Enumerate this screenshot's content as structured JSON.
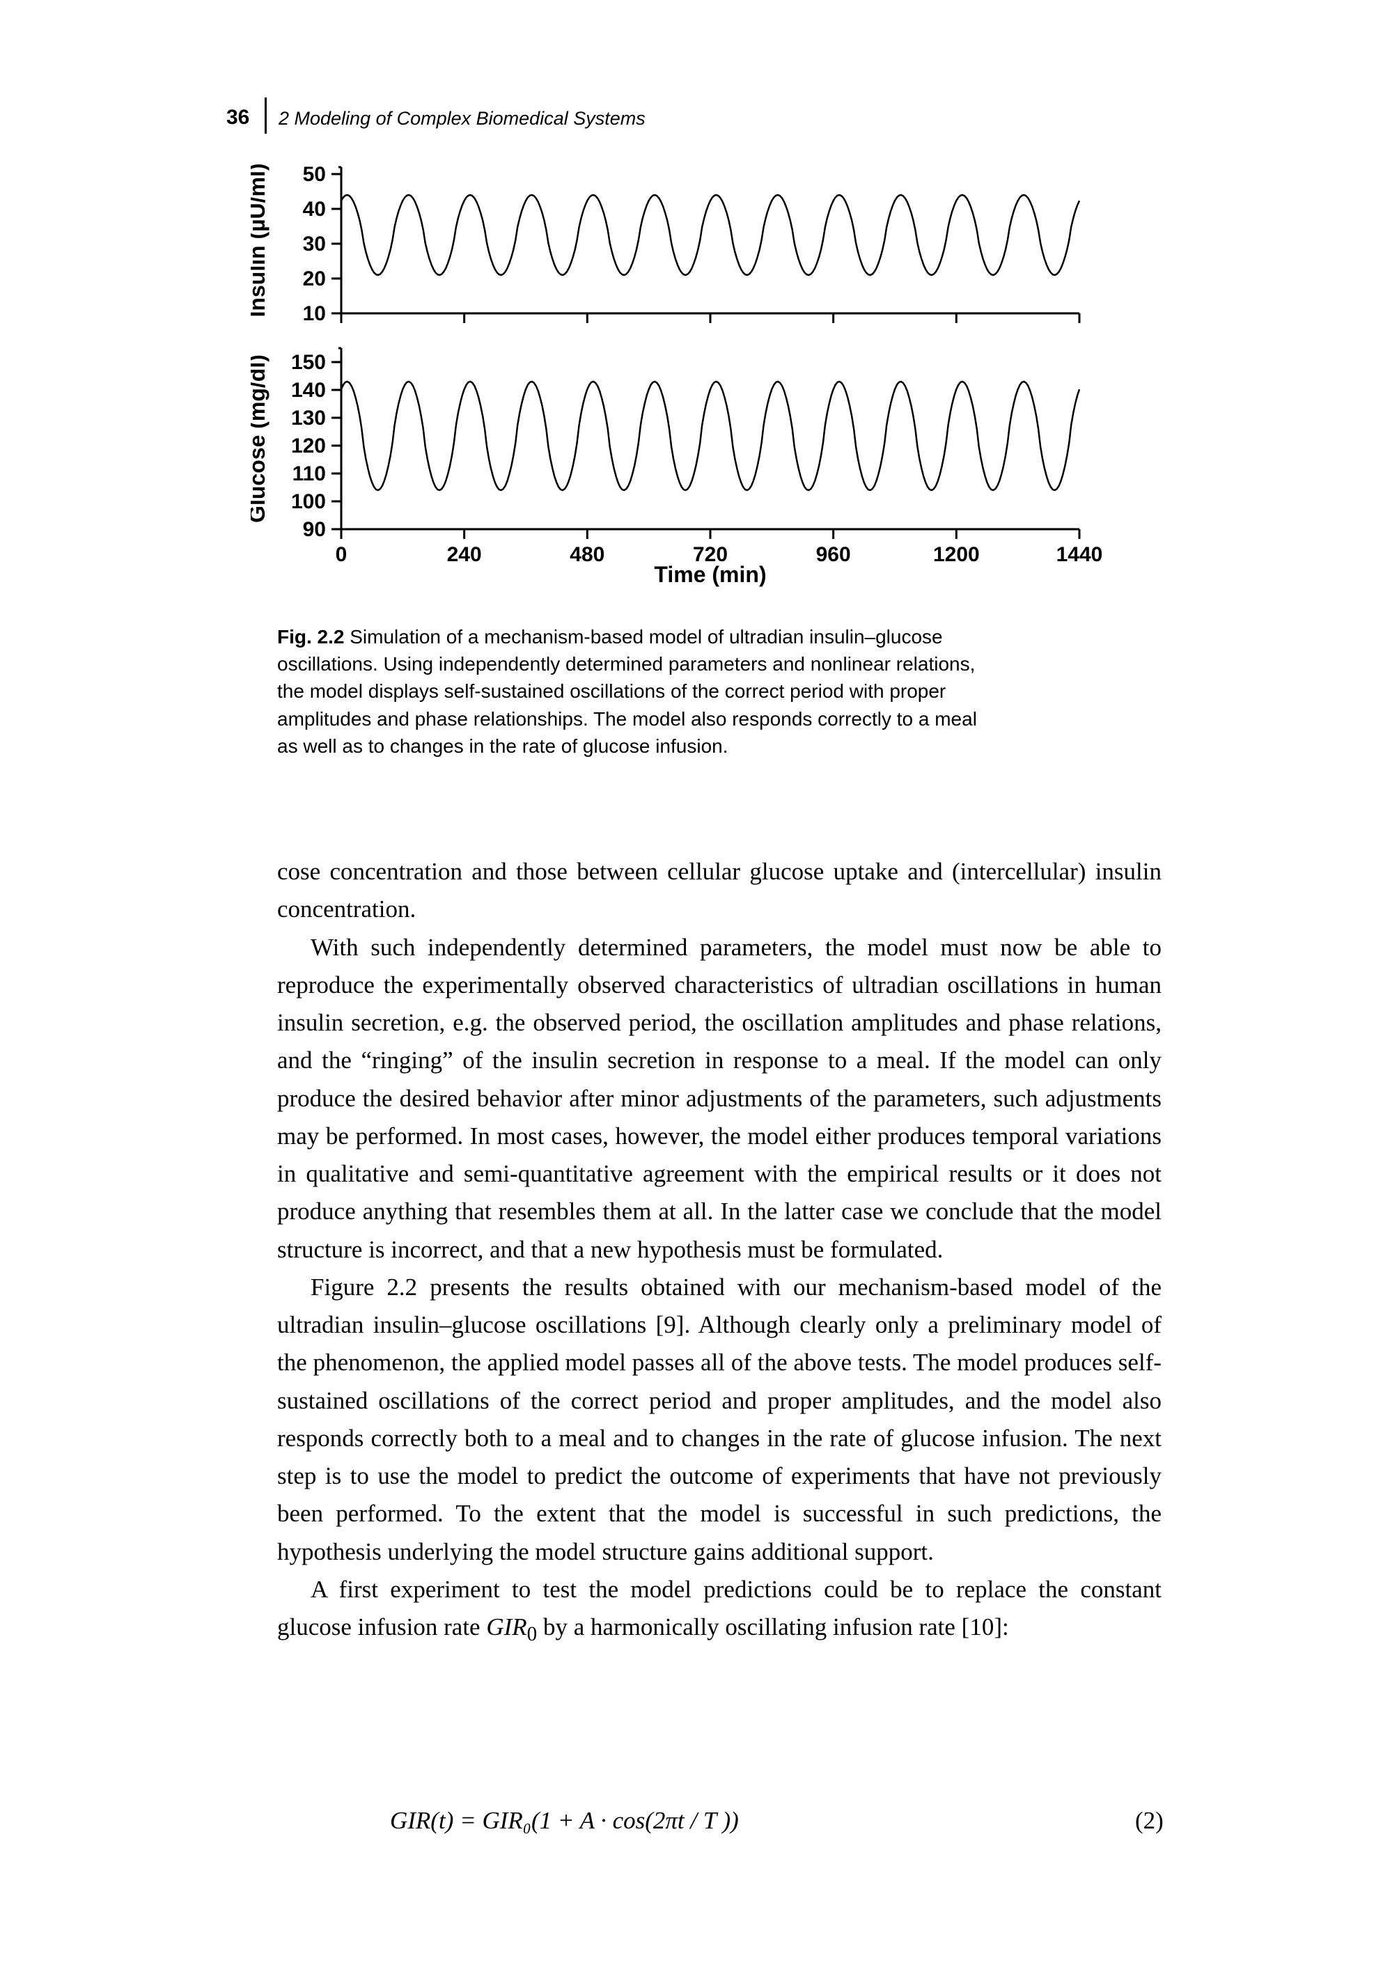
{
  "header": {
    "page_number": "36",
    "running_head": "2 Modeling of Complex Biomedical Systems",
    "page_number_fontsize": 30,
    "running_head_fontsize": 27
  },
  "figure": {
    "type": "two_stacked_line_charts",
    "line_color": "#000000",
    "line_width": 2.5,
    "axis_color": "#000000",
    "axis_width": 3,
    "tick_length": 14,
    "label_fontsize": 32,
    "tick_fontsize": 30,
    "x_axis_label": "Time (min)",
    "x_ticks": [
      0,
      240,
      480,
      720,
      960,
      1200,
      1440
    ],
    "panel_top": {
      "y_label": "Insulin (µU/ml)",
      "y_ticks": [
        10,
        20,
        30,
        40,
        50
      ],
      "ylim": [
        10,
        52
      ],
      "oscillation": {
        "period_min": 120,
        "low": 21,
        "high": 44,
        "series_points": 360
      }
    },
    "panel_bottom": {
      "y_label": "Glucose (mg/dl)",
      "y_ticks": [
        90,
        100,
        110,
        120,
        130,
        140,
        150
      ],
      "ylim": [
        90,
        155
      ],
      "oscillation": {
        "period_min": 120,
        "low": 104,
        "high": 143,
        "series_points": 360
      }
    }
  },
  "caption": {
    "label": "Fig. 2.2",
    "text": "Simulation of a mechanism-based model of ultradian insulin–glucose oscillations. Using independently determined parameters and nonlinear relations, the model displays self-sustained oscillations of the correct period with proper amplitudes and phase relationships. The model also responds correctly to a meal as well as to changes in the rate of glucose infusion.",
    "fontsize": 28
  },
  "body": {
    "p1": "cose concentration and those between cellular glucose uptake and (intercellular) insulin concentration.",
    "p2": "With such independently determined parameters, the model must now be able to reproduce the experimentally observed characteristics of ultradian oscillations in human insulin secretion, e.g. the observed period, the oscillation amplitudes and phase relations, and the “ringing” of the insulin secretion in response to a meal. If the model can only produce the desired behavior after minor adjustments of the parameters, such adjustments may be performed. In most cases, however, the model either produces temporal variations in qualitative and semi-quantitative agreement with the empirical results or it does not produce anything that resembles them at all. In the latter case we conclude that the model structure is incorrect, and that a new hypothesis must be formulated.",
    "p3": "Figure 2.2 presents the results obtained with our mechanism-based model of the ultradian insulin–glucose oscillations [9]. Although clearly only a preliminary model of the phenomenon, the applied model passes all of the above tests. The model produces self-sustained oscillations of the correct period and proper amplitudes, and the model also responds correctly both to a meal and to changes in the rate of glucose infusion. The next step is to use the model to predict the outcome of experiments that have not previously been performed. To the extent that the model is successful in such predictions, the hypothesis underlying the model structure gains additional support.",
    "p4_a": "A first experiment to test the model predictions could be to replace the constant glucose infusion rate ",
    "p4_gir": "GIR",
    "p4_sub": "0",
    "p4_b": " by a harmonically oscillating infusion rate [10]:"
  },
  "equation": {
    "text": "GIR(t)  =  GIR₀(1 + A · cos(2πt / T ))",
    "number": "(2)"
  }
}
